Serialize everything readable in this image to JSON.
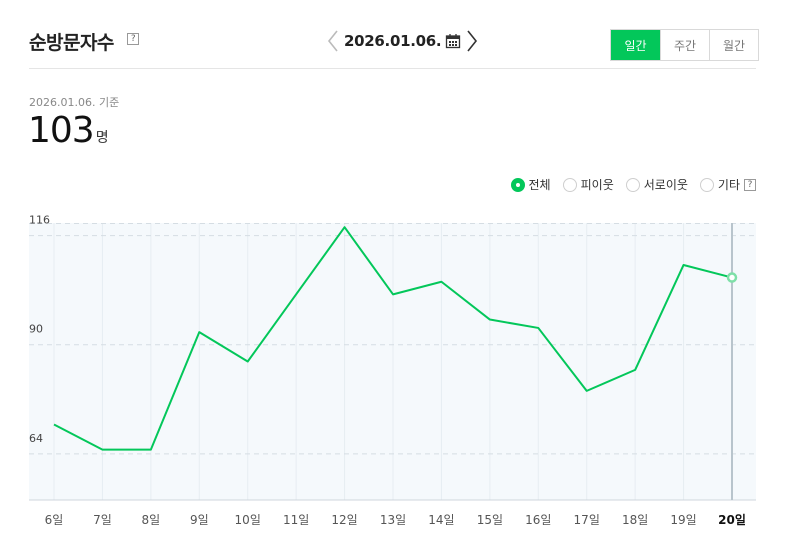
{
  "header": {
    "title": "순방문자수",
    "help": "?",
    "date": "2026.01.06.",
    "period_tabs": [
      "일간",
      "주간",
      "월간"
    ],
    "active_tab": "일간"
  },
  "summary": {
    "basis": "2026.01.06. 기준",
    "count": "103",
    "unit": "명"
  },
  "filters": {
    "options": [
      "전체",
      "피이웃",
      "서로이웃",
      "기타"
    ],
    "selected": "전체",
    "help": "?"
  },
  "colors": {
    "accent": "#03c75a",
    "plot_bg": "#f5f9fc"
  },
  "chart_data": {
    "type": "line",
    "categories": [
      "6일",
      "7일",
      "8일",
      "9일",
      "10일",
      "11일",
      "12일",
      "13일",
      "14일",
      "15일",
      "16일",
      "17일",
      "18일",
      "19일",
      "20일"
    ],
    "values": [
      71,
      65,
      65,
      93,
      86,
      102,
      118,
      102,
      105,
      96,
      94,
      79,
      84,
      109,
      106
    ],
    "yticks": [
      64,
      90,
      116
    ],
    "ylim": [
      53,
      119
    ],
    "highlight_category": "20일",
    "grid": true
  }
}
